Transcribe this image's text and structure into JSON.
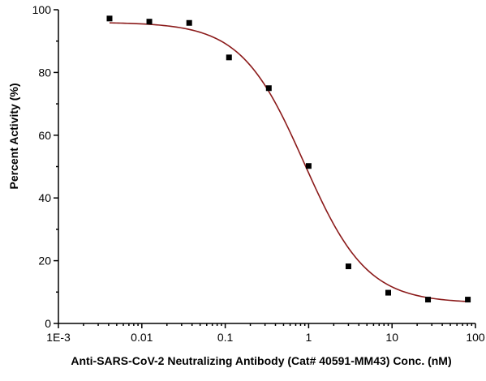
{
  "chart_data": {
    "type": "scatter",
    "title": "",
    "xlabel": "Anti-SARS-CoV-2 Neutralizing Antibody (Cat# 40591-MM43) Conc. (nM)",
    "ylabel": "Percent Activity (%)",
    "x_scale": "log",
    "xlim": [
      0.001,
      100
    ],
    "ylim": [
      0,
      100
    ],
    "x_ticks": [
      0.001,
      0.01,
      0.1,
      1,
      10,
      100
    ],
    "x_tick_labels": [
      "1E-3",
      "0.01",
      "0.1",
      "1",
      "10",
      "100"
    ],
    "y_ticks": [
      0,
      20,
      40,
      60,
      80,
      100
    ],
    "y_tick_labels": [
      "0",
      "20",
      "40",
      "60",
      "80",
      "100"
    ],
    "grid": false,
    "legend": "none",
    "series": [
      {
        "kind": "points",
        "marker": "square",
        "color": "#000000",
        "x": [
          0.0041,
          0.0123,
          0.037,
          0.111,
          0.333,
          1.0,
          3.0,
          9.0,
          27.0,
          81.0
        ],
        "y": [
          97.2,
          96.2,
          95.8,
          84.8,
          75.0,
          50.2,
          18.2,
          9.8,
          7.6,
          7.6
        ]
      },
      {
        "kind": "fit-curve",
        "model": "4PL",
        "color": "#8b1a1a",
        "top": 96.0,
        "bottom": 6.5,
        "ic50": 0.88,
        "hill": 1.15,
        "x_range": [
          0.0041,
          81.0
        ]
      }
    ]
  }
}
